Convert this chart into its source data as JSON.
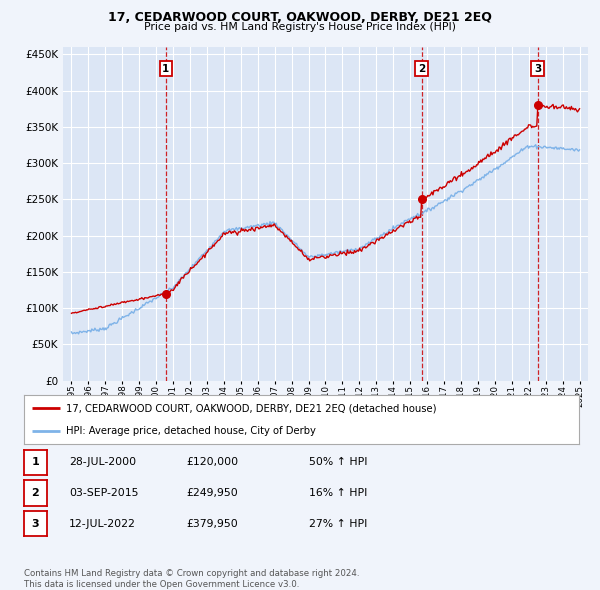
{
  "title": "17, CEDARWOOD COURT, OAKWOOD, DERBY, DE21 2EQ",
  "subtitle": "Price paid vs. HM Land Registry's House Price Index (HPI)",
  "background_color": "#f0f4fb",
  "plot_bg_color": "#dce6f5",
  "legend_line1": "17, CEDARWOOD COURT, OAKWOOD, DERBY, DE21 2EQ (detached house)",
  "legend_line2": "HPI: Average price, detached house, City of Derby",
  "footer": "Contains HM Land Registry data © Crown copyright and database right 2024.\nThis data is licensed under the Open Government Licence v3.0.",
  "sale_labels": [
    {
      "num": 1,
      "date": "28-JUL-2000",
      "price": "£120,000",
      "pct": "50% ↑ HPI",
      "x_year": 2000.57,
      "y_val": 120000
    },
    {
      "num": 2,
      "date": "03-SEP-2015",
      "price": "£249,950",
      "pct": "16% ↑ HPI",
      "x_year": 2015.67,
      "y_val": 249950
    },
    {
      "num": 3,
      "date": "12-JUL-2022",
      "price": "£379,950",
      "pct": "27% ↑ HPI",
      "x_year": 2022.53,
      "y_val": 379950
    }
  ],
  "ylim": [
    0,
    460000
  ],
  "xlim": [
    1994.5,
    2025.5
  ],
  "yticks": [
    0,
    50000,
    100000,
    150000,
    200000,
    250000,
    300000,
    350000,
    400000,
    450000
  ],
  "xticks": [
    1995,
    1996,
    1997,
    1998,
    1999,
    2000,
    2001,
    2002,
    2003,
    2004,
    2005,
    2006,
    2007,
    2008,
    2009,
    2010,
    2011,
    2012,
    2013,
    2014,
    2015,
    2016,
    2017,
    2018,
    2019,
    2020,
    2021,
    2022,
    2023,
    2024,
    2025
  ],
  "red_color": "#cc0000",
  "blue_color": "#7fb3e8",
  "dashed_color": "#cc0000",
  "grid_color": "#ffffff"
}
